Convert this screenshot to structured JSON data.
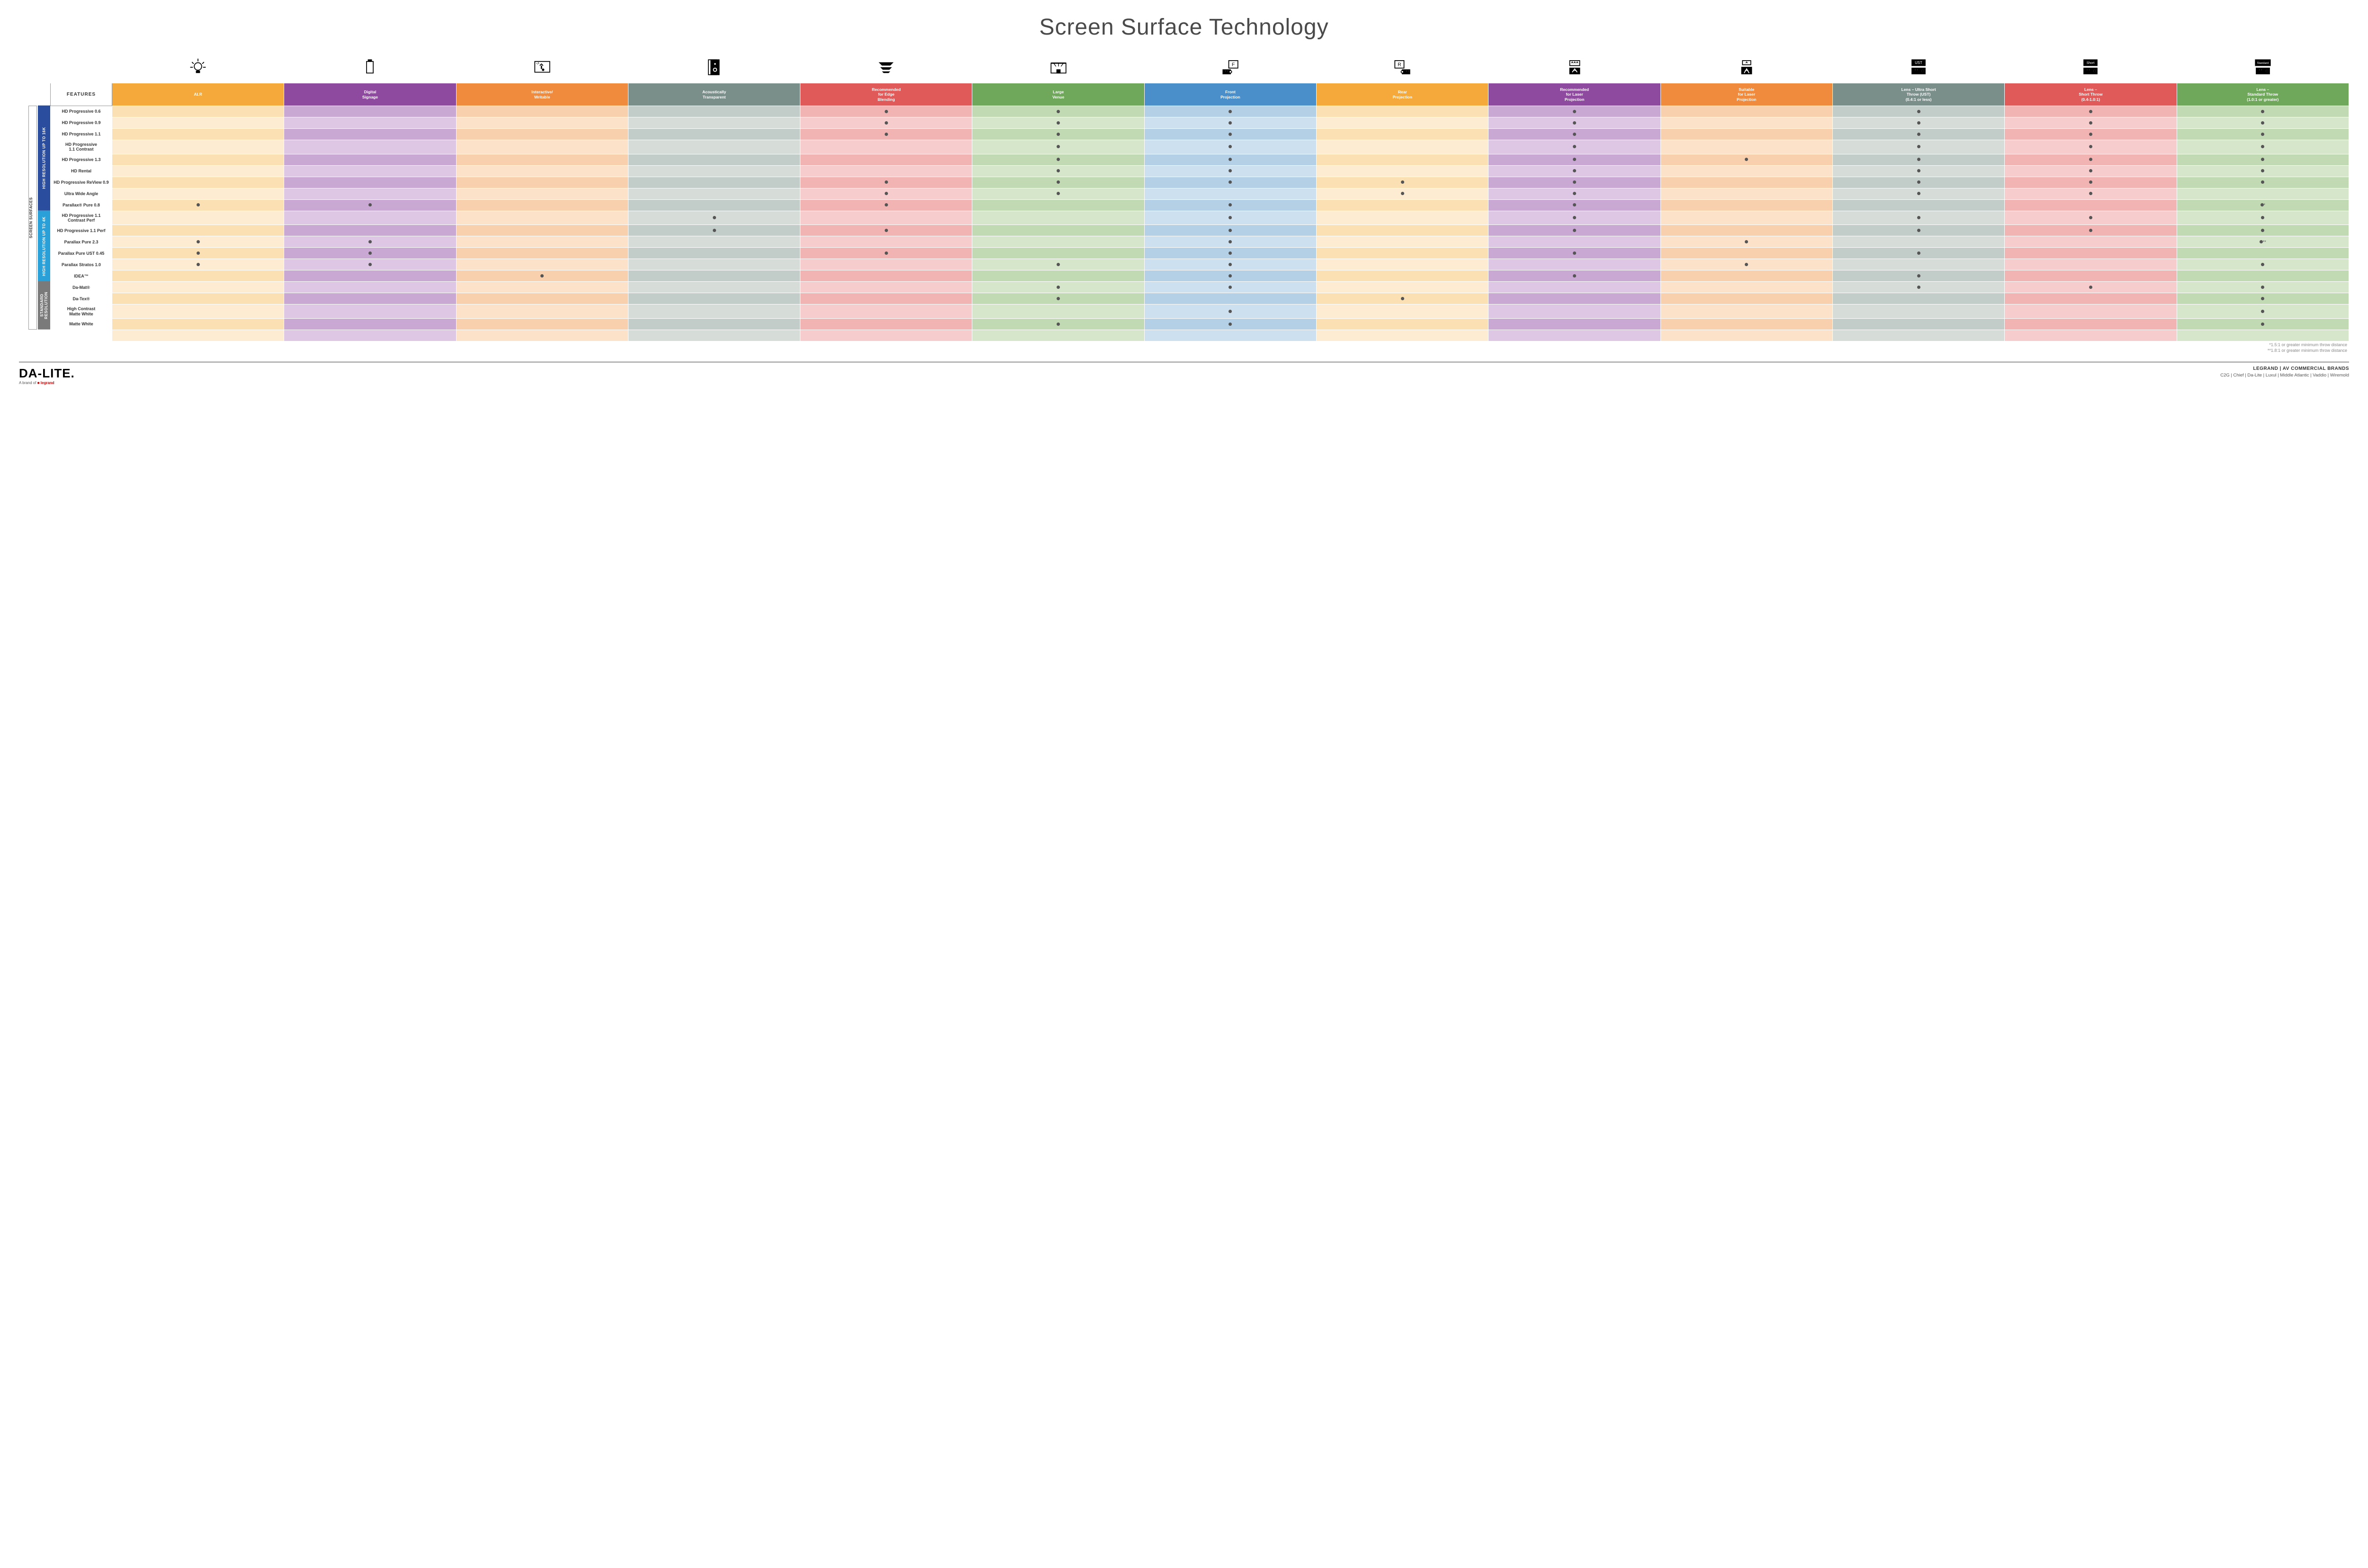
{
  "title": "Screen Surface Technology",
  "features_header": "FEATURES",
  "columns": [
    {
      "key": "alr",
      "label": "ALR",
      "color": "#f4a93a",
      "tint": "#fbe0b3",
      "alt": "#fdecd1",
      "icon": "bulb"
    },
    {
      "key": "ds",
      "label": "Digital\nSignage",
      "color": "#8e4a9e",
      "tint": "#c9a9d4",
      "alt": "#ddc7e4",
      "icon": "signage"
    },
    {
      "key": "iw",
      "label": "Interactive/\nWritable",
      "color": "#f08a3c",
      "tint": "#f9d0ad",
      "alt": "#fce2c9",
      "icon": "touch"
    },
    {
      "key": "at",
      "label": "Acoustically\nTransparent",
      "color": "#7a8e8a",
      "tint": "#c2cdc9",
      "alt": "#d6ddd9",
      "icon": "speaker"
    },
    {
      "key": "edge",
      "label": "Recommended\nfor Edge\nBlending",
      "color": "#e05a5a",
      "tint": "#f2b3b3",
      "alt": "#f7cccc",
      "icon": "blend"
    },
    {
      "key": "lv",
      "label": "Large\nVenue",
      "color": "#6fa85a",
      "tint": "#c1dab4",
      "alt": "#d5e6cb",
      "icon": "venue"
    },
    {
      "key": "fp",
      "label": "Front\nProjection",
      "color": "#4a8fc9",
      "tint": "#b3d0e6",
      "alt": "#cde0ef",
      "icon": "front"
    },
    {
      "key": "rp",
      "label": "Rear\nProjection",
      "color": "#f4a93a",
      "tint": "#fbe0b3",
      "alt": "#fdecd1",
      "icon": "rear"
    },
    {
      "key": "rl",
      "label": "Recommended\nfor Laser\nProjection",
      "color": "#8e4a9e",
      "tint": "#c9a9d4",
      "alt": "#ddc7e4",
      "icon": "laser3"
    },
    {
      "key": "sl",
      "label": "Suitable\nfor Laser\nProjection",
      "color": "#f08a3c",
      "tint": "#f9d0ad",
      "alt": "#fce2c9",
      "icon": "laser1"
    },
    {
      "key": "ust",
      "label": "Lens – Ultra Short\nThrow (UST)\n(0.4:1 or less)",
      "color": "#7a8e8a",
      "tint": "#c2cdc9",
      "alt": "#d6ddd9",
      "icon": "proj_ust"
    },
    {
      "key": "st",
      "label": "Lens –\nShort Throw\n(0.4-1.0:1)",
      "color": "#e05a5a",
      "tint": "#f2b3b3",
      "alt": "#f7cccc",
      "icon": "proj_short"
    },
    {
      "key": "std",
      "label": "Lens –\nStandard Throw\n(1.0:1 or greater)",
      "color": "#6fa85a",
      "tint": "#c1dab4",
      "alt": "#d5e6cb",
      "icon": "proj_std"
    }
  ],
  "side_label": "SCREEN SURFACES",
  "groups": [
    {
      "label": "HIGH RESOLUTION UP TO 16K",
      "color": "#2a4d9e",
      "rows": [
        {
          "name": "HD Progressive 0.6",
          "dots": {
            "edge": "•",
            "lv": "•",
            "fp": "•",
            "rl": "•",
            "ust": "•",
            "st": "•",
            "std": "•"
          }
        },
        {
          "name": "HD Progressive 0.9",
          "dots": {
            "edge": "•",
            "lv": "•",
            "fp": "•",
            "rl": "•",
            "ust": "•",
            "st": "•",
            "std": "•"
          }
        },
        {
          "name": "HD Progressive 1.1",
          "dots": {
            "edge": "•",
            "lv": "•",
            "fp": "•",
            "rl": "•",
            "ust": "•",
            "st": "•",
            "std": "•"
          }
        },
        {
          "name": "HD Progressive\n1.1 Contrast",
          "dots": {
            "lv": "•",
            "fp": "•",
            "rl": "•",
            "ust": "•",
            "st": "•",
            "std": "•"
          }
        },
        {
          "name": "HD Progressive 1.3",
          "dots": {
            "lv": "•",
            "fp": "•",
            "rl": "•",
            "sl": "•",
            "ust": "•",
            "st": "•",
            "std": "•"
          }
        },
        {
          "name": "HD Rental",
          "dots": {
            "lv": "•",
            "fp": "•",
            "rl": "•",
            "ust": "•",
            "st": "•",
            "std": "•"
          }
        },
        {
          "name": "HD Progressive ReView 0.9",
          "dots": {
            "edge": "•",
            "lv": "•",
            "fp": "•",
            "rp": "•",
            "rl": "•",
            "ust": "•",
            "st": "•",
            "std": "•"
          }
        },
        {
          "name": "Ultra Wide Angle",
          "dots": {
            "edge": "•",
            "lv": "•",
            "rp": "•",
            "rl": "•",
            "ust": "•",
            "st": "•"
          }
        },
        {
          "name": "Parallax® Pure 0.8",
          "dots": {
            "alr": "•",
            "ds": "•",
            "edge": "•",
            "fp": "•",
            "rl": "•",
            "std": "•*"
          }
        }
      ]
    },
    {
      "label": "HIGH RESOLUTION UP TO 4K",
      "color": "#2aa0d8",
      "rows": [
        {
          "name": "HD Progressive 1.1\nContrast Perf",
          "dots": {
            "at": "•",
            "fp": "•",
            "rl": "•",
            "ust": "•",
            "st": "•",
            "std": "•"
          }
        },
        {
          "name": "HD Progressive 1.1 Perf",
          "dots": {
            "at": "•",
            "edge": "•",
            "fp": "•",
            "rl": "•",
            "ust": "•",
            "st": "•",
            "std": "•"
          }
        },
        {
          "name": "Parallax Pure 2.3",
          "dots": {
            "alr": "•",
            "ds": "•",
            "fp": "•",
            "sl": "•",
            "std": "•**"
          }
        },
        {
          "name": "Parallax Pure UST 0.45",
          "dots": {
            "alr": "•",
            "ds": "•",
            "edge": "•",
            "fp": "•",
            "rl": "•",
            "ust": "•"
          }
        },
        {
          "name": "Parallax Stratos 1.0",
          "dots": {
            "alr": "•",
            "ds": "•",
            "lv": "•",
            "fp": "•",
            "sl": "•",
            "std": "•"
          }
        },
        {
          "name": "IDEA™",
          "dots": {
            "iw": "•",
            "fp": "•",
            "rl": "•",
            "ust": "•"
          }
        }
      ]
    },
    {
      "label": "STANDARD\nRESOLUTION",
      "color": "#7a7a7a",
      "rows": [
        {
          "name": "Da-Mat®",
          "dots": {
            "lv": "•",
            "fp": "•",
            "ust": "•",
            "st": "•",
            "std": "•"
          }
        },
        {
          "name": "Da-Tex®",
          "dots": {
            "lv": "•",
            "rp": "•",
            "std": "•"
          }
        },
        {
          "name": "High Contrast\nMatte White",
          "dots": {
            "fp": "•",
            "std": "•"
          }
        },
        {
          "name": "Matte White",
          "dots": {
            "lv": "•",
            "fp": "•",
            "std": "•"
          }
        }
      ]
    }
  ],
  "footnotes": [
    "*1.5:1 or greater minimum throw distance",
    "**1.8:1 or greater minimum throw distance"
  ],
  "footer": {
    "logo_main": "DA-LITE.",
    "logo_sub_prefix": "A brand of ",
    "logo_sub_brand": "legrand",
    "brands_header": "LEGRAND | AV COMMERCIAL BRANDS",
    "brands_list": "C2G  |  Chief  |  Da-Lite  |  Luxul  |  Middle Atlantic  |  Vaddio  |  Wiremold"
  }
}
